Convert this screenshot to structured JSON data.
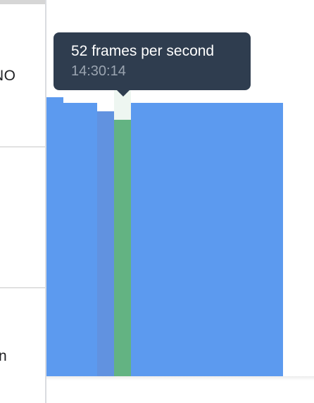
{
  "side_panel": {
    "rows": [
      {
        "label": "NO"
      },
      {
        "label": ""
      },
      {
        "label": "n"
      }
    ]
  },
  "chart_data": {
    "type": "bar",
    "unit": "frames per second",
    "series": [
      {
        "values": [
          60,
          58,
          58,
          55,
          52,
          58,
          58,
          58,
          58,
          58,
          58,
          58,
          58,
          58
        ]
      }
    ],
    "highlighted_index": 4,
    "colors": {
      "bar": "#5c9aef",
      "bar_dim": "#6192e0",
      "highlight": "#63b382",
      "highlight_band": "#eef6f1"
    }
  },
  "tooltip": {
    "value_text": "52 frames per second",
    "time_text": "14:30:14"
  },
  "colors": {
    "tooltip_bg": "#2f3d4f",
    "divider": "#dadce0"
  }
}
